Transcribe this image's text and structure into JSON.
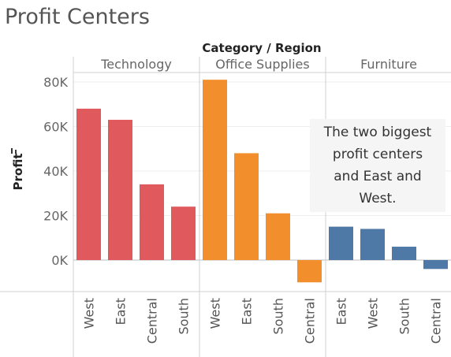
{
  "page": {
    "title": "Profit Centers"
  },
  "chart_data": {
    "type": "bar",
    "column_header": "Category / Region",
    "ylabel": "Profit",
    "ylabel_icon": "filter-icon",
    "ylim": [
      -18000,
      88000
    ],
    "yticks": [
      {
        "value": 0,
        "label": "0K"
      },
      {
        "value": 20000,
        "label": "20K"
      },
      {
        "value": 40000,
        "label": "40K"
      },
      {
        "value": 60000,
        "label": "60K"
      },
      {
        "value": 80000,
        "label": "80K"
      }
    ],
    "grid": true,
    "panels": [
      {
        "category": "Technology",
        "color": "#e05a5d",
        "categories": [
          "West",
          "East",
          "Central",
          "South"
        ],
        "values": [
          68000,
          63000,
          34000,
          24000
        ]
      },
      {
        "category": "Office Supplies",
        "color": "#f28e2b",
        "categories": [
          "West",
          "East",
          "South",
          "Central"
        ],
        "values": [
          81000,
          48000,
          21000,
          -10000
        ]
      },
      {
        "category": "Furniture",
        "color": "#4e79a7",
        "categories": [
          "East",
          "West",
          "South",
          "Central"
        ],
        "values": [
          15000,
          14000,
          6000,
          -4000
        ]
      }
    ],
    "annotation": {
      "lines": [
        "The two biggest",
        "profit centers",
        "and East and",
        "West."
      ]
    }
  }
}
